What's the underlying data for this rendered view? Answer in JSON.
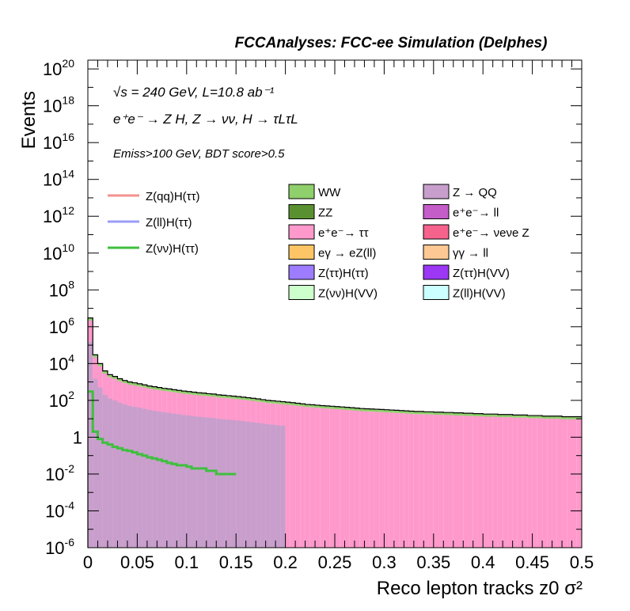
{
  "header": {
    "title": "FCCAnalyses: FCC-ee Simulation (Delphes)"
  },
  "annotations": {
    "energy": "√s = 240 GeV, L=10.8 ab⁻¹",
    "process": "e⁺e⁻ → Z H, Z → νν, H → τLτL",
    "selection": "Emiss>100 GeV, BDT score>0.5"
  },
  "chart_data": {
    "type": "histogram",
    "title": "FCCAnalyses: FCC-ee Simulation (Delphes)",
    "xlabel": "Reco lepton tracks z0 σ²",
    "ylabel": "Events",
    "xlim": [
      0,
      0.5
    ],
    "ylim": [
      1e-06,
      3e+20
    ],
    "y_scale": "log",
    "x_ticks": [
      "0",
      "0.05",
      "0.1",
      "0.15",
      "0.2",
      "0.25",
      "0.3",
      "0.35",
      "0.4",
      "0.45",
      "0.5"
    ],
    "y_ticks": [
      {
        "base": "10",
        "exp": "-6"
      },
      {
        "base": "10",
        "exp": "-4"
      },
      {
        "base": "10",
        "exp": "-2"
      },
      {
        "base": "1",
        "exp": ""
      },
      {
        "base": "10",
        "exp": "2"
      },
      {
        "base": "10",
        "exp": "4"
      },
      {
        "base": "10",
        "exp": "6"
      },
      {
        "base": "10",
        "exp": "8"
      },
      {
        "base": "10",
        "exp": "10"
      },
      {
        "base": "10",
        "exp": "12"
      },
      {
        "base": "10",
        "exp": "14"
      },
      {
        "base": "10",
        "exp": "16"
      },
      {
        "base": "10",
        "exp": "18"
      },
      {
        "base": "10",
        "exp": "20"
      }
    ],
    "signal_legend": [
      {
        "name": "Z(qq)H(ττ)",
        "color": "#f4928f"
      },
      {
        "name": "Z(ll)H(ττ)",
        "color": "#9a9cf4"
      },
      {
        "name": "Z(νν)H(ττ)",
        "color": "#3fbf3f"
      }
    ],
    "background_legend": [
      {
        "name": "WW",
        "color": "#8fcf6c"
      },
      {
        "name": "Z → QQ",
        "color": "#c89fcc"
      },
      {
        "name": "ZZ",
        "color": "#5a9130"
      },
      {
        "name": "e⁺e⁻→ ll",
        "color": "#c45dc8"
      },
      {
        "name": "e⁺e⁻→ ττ",
        "color": "#ff99cc"
      },
      {
        "name": "e⁺e⁻→ νeνe Z",
        "color": "#f5628c"
      },
      {
        "name": "eγ → eZ(ll)",
        "color": "#fdc566"
      },
      {
        "name": "γγ → ll",
        "color": "#fdc894"
      },
      {
        "name": "Z(ττ)H(ττ)",
        "color": "#9d7cff"
      },
      {
        "name": "Z(ττ)H(VV)",
        "color": "#9b37f5"
      },
      {
        "name": "Z(νν)H(VV)",
        "color": "#ccffcc"
      },
      {
        "name": "Z(ll)H(VV)",
        "color": "#ccffff"
      }
    ],
    "stack_total": {
      "x_bin_width": 0.005,
      "values": [
        3000000.0,
        30000.0,
        10000.0,
        4000.0,
        2500.0,
        2000.0,
        1500.0,
        1200.0,
        1000.0,
        900,
        800,
        700,
        600,
        550,
        500,
        450,
        420,
        380,
        350,
        320,
        300,
        280,
        260,
        250,
        230,
        220,
        200,
        190,
        180,
        170,
        160,
        150,
        140,
        130,
        120,
        110,
        100,
        95,
        90,
        85,
        80,
        75,
        70,
        65,
        60,
        58,
        55,
        52,
        50,
        48,
        46,
        44,
        42,
        40,
        38,
        36,
        35,
        34,
        33,
        32,
        31,
        30,
        29,
        28,
        27,
        26,
        25,
        25,
        24,
        24,
        23,
        23,
        22,
        22,
        21,
        21,
        20,
        20,
        19,
        19,
        18,
        18,
        18,
        17,
        17,
        17,
        16,
        16,
        16,
        15,
        15,
        15,
        14,
        14,
        14,
        14,
        13,
        13,
        13,
        13
      ]
    },
    "series": [
      {
        "name": "Z(νν)H(ττ)",
        "values": [
          300,
          2,
          0.8,
          0.5,
          0.4,
          0.3,
          0.25,
          0.2,
          0.18,
          0.15,
          0.12,
          0.1,
          0.08,
          0.07,
          0.06,
          0.05,
          0.04,
          0.035,
          0.03,
          0.03,
          0.025,
          0.02,
          0.02,
          0.02,
          0.015,
          0.015,
          0.01,
          0.01,
          0.01,
          0.01
        ]
      }
    ]
  }
}
